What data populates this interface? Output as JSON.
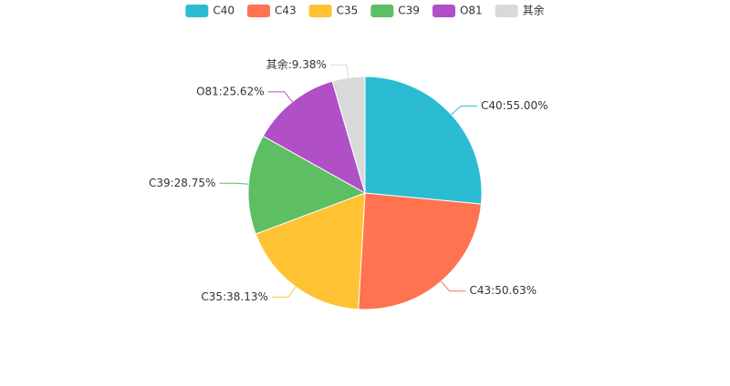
{
  "chart_data": {
    "type": "pie",
    "categories": [
      "C40",
      "C43",
      "C35",
      "C39",
      "O81",
      "其余"
    ],
    "values": [
      55.0,
      50.63,
      38.13,
      28.75,
      25.62,
      9.38
    ],
    "value_labels": [
      "C40:55.00%",
      "C43:50.63%",
      "C35:38.13%",
      "C39:28.75%",
      "O81:25.62%",
      "其余:9.38%"
    ],
    "colors": [
      "#2bbcd3",
      "#ff7350",
      "#ffc233",
      "#5dbe63",
      "#b04fc6",
      "#d9d9d9"
    ],
    "legend": "top"
  }
}
